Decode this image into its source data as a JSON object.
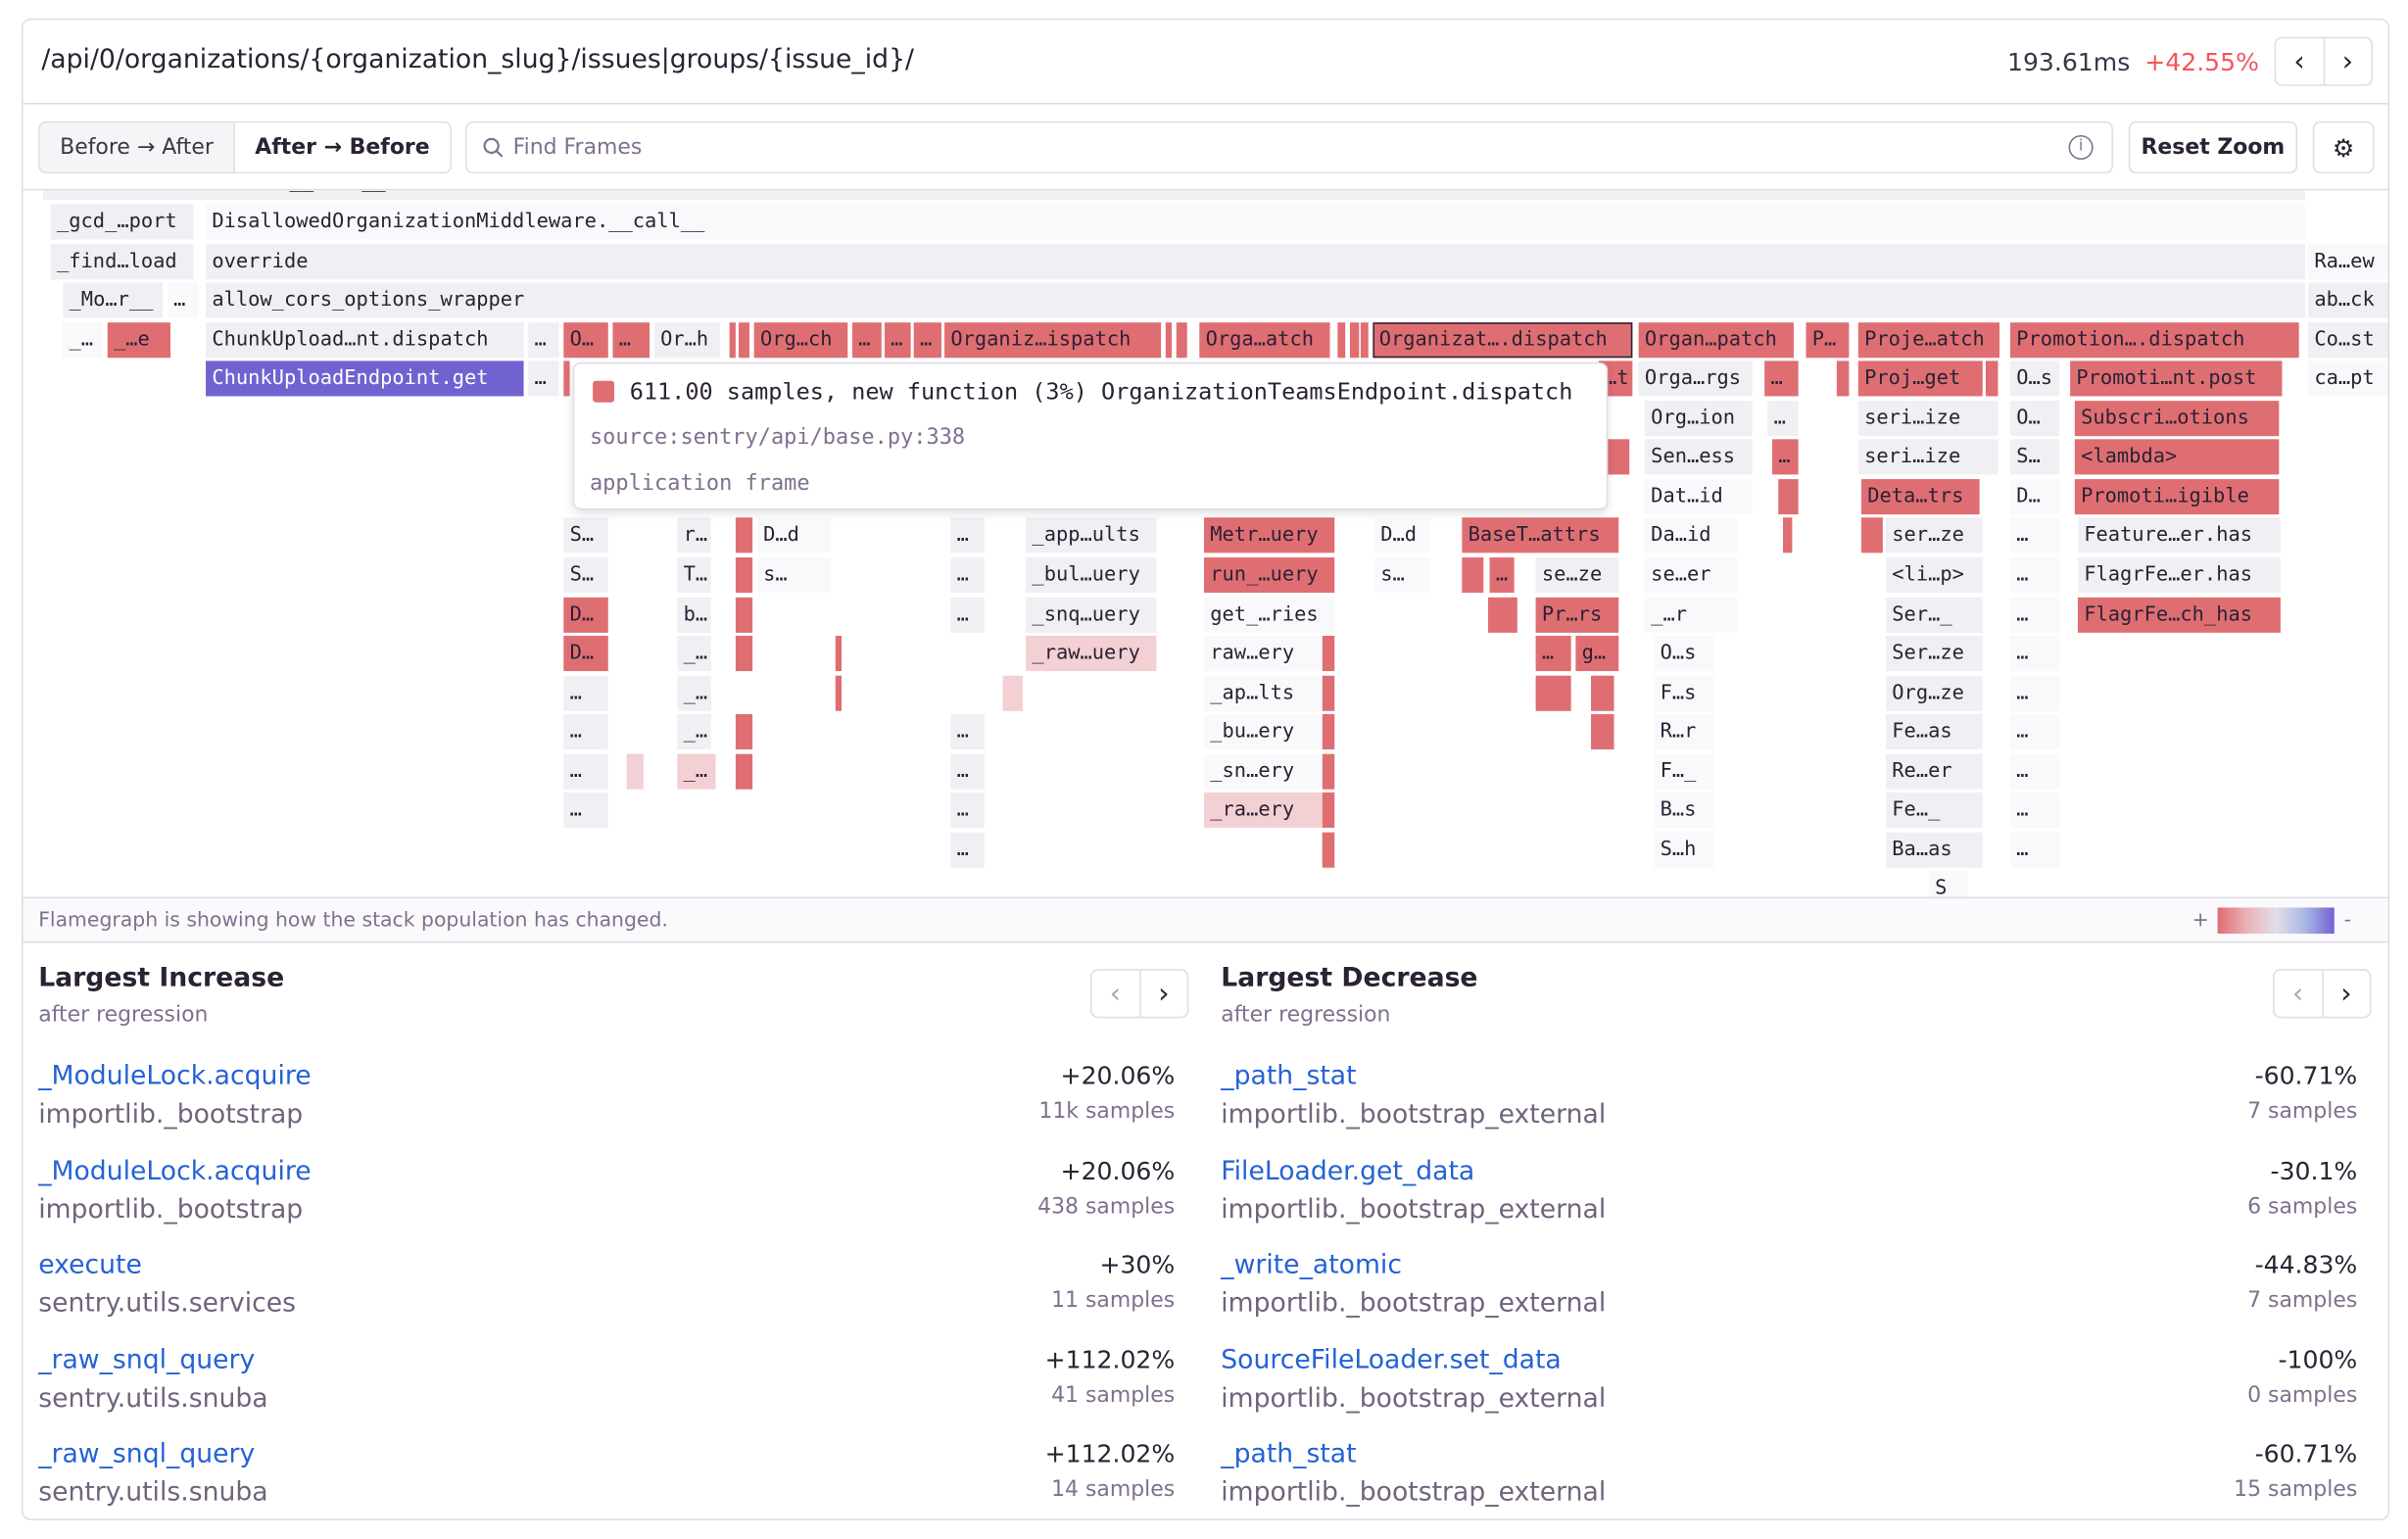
{
  "header": {
    "title": "/api/0/organizations/{organization_slug}/issues|groups/{issue_id}/",
    "duration": "193.61ms",
    "change": "+42.55%",
    "prev": "‹",
    "next": "›"
  },
  "toolbar": {
    "before_after": "Before → After",
    "after_before": "After → Before",
    "search_placeholder": "Find Frames",
    "info": "i",
    "reset_zoom": "Reset Zoom",
    "settings": "⚙"
  },
  "colors": {
    "increase": "#df6e73",
    "slight_increase": "#f3d0d3",
    "decrease": "#7162d1",
    "regression": "#f55459",
    "link": "#2562d4"
  },
  "flamegraph": {
    "frames": [
      {
        "label": "RatelimitMiddleware.__call__",
        "kind": "gray"
      },
      {
        "label": "_gcd_…port",
        "kind": "gray"
      },
      {
        "label": "DisallowedOrganizationMiddleware.__call__",
        "kind": "light"
      },
      {
        "label": "_find…load",
        "kind": "gray"
      },
      {
        "label": "override",
        "kind": "gray"
      },
      {
        "label": "Ra…ew",
        "kind": "light"
      },
      {
        "label": "_Mo…r__",
        "kind": "gray"
      },
      {
        "label": "…",
        "kind": "light"
      },
      {
        "label": "allow_cors_options_wrapper",
        "kind": "gray"
      },
      {
        "label": "ab…ck",
        "kind": "gray"
      },
      {
        "label": "_…",
        "kind": "light"
      },
      {
        "label": "_…e",
        "kind": "red"
      },
      {
        "label": "ChunkUpload…nt.dispatch",
        "kind": "gray"
      },
      {
        "label": "…",
        "kind": "gray"
      },
      {
        "label": "O…",
        "kind": "red"
      },
      {
        "label": "…",
        "kind": "red"
      },
      {
        "label": "Or…h",
        "kind": "gray"
      },
      {
        "label": "Org…ch",
        "kind": "red"
      },
      {
        "label": "…",
        "kind": "red"
      },
      {
        "label": "…",
        "kind": "red"
      },
      {
        "label": "…",
        "kind": "red"
      },
      {
        "label": "Organiz…ispatch",
        "kind": "red"
      },
      {
        "label": "Orga…atch",
        "kind": "red"
      },
      {
        "label": "Organizat….dispatch",
        "kind": "sel"
      },
      {
        "label": "Organ…patch",
        "kind": "red"
      },
      {
        "label": "P…",
        "kind": "red"
      },
      {
        "label": "Proje…atch",
        "kind": "red"
      },
      {
        "label": "Promotion….dispatch",
        "kind": "red"
      },
      {
        "label": "Co…st",
        "kind": "gray"
      },
      {
        "label": "ChunkUploadEndpoint.get",
        "kind": "purple"
      },
      {
        "label": "…",
        "kind": "gray"
      },
      {
        "label": "…t",
        "kind": "red"
      },
      {
        "label": "Orga…rgs",
        "kind": "gray"
      },
      {
        "label": "…",
        "kind": "red"
      },
      {
        "label": "Proj…get",
        "kind": "red"
      },
      {
        "label": "O…s",
        "kind": "gray"
      },
      {
        "label": "Promoti…nt.post",
        "kind": "red"
      },
      {
        "label": "ca…pt",
        "kind": "light"
      },
      {
        "label": "Org…ion",
        "kind": "gray"
      },
      {
        "label": "…",
        "kind": "gray"
      },
      {
        "label": "seri…ize",
        "kind": "gray"
      },
      {
        "label": "O…",
        "kind": "gray"
      },
      {
        "label": "Subscri…otions",
        "kind": "red"
      },
      {
        "label": "Sen…ess",
        "kind": "gray"
      },
      {
        "label": "…",
        "kind": "red"
      },
      {
        "label": "seri…ize",
        "kind": "gray"
      },
      {
        "label": "S…",
        "kind": "gray"
      },
      {
        "label": "<lambda>",
        "kind": "red"
      },
      {
        "label": "Dat…id",
        "kind": "light"
      },
      {
        "label": "Deta…trs",
        "kind": "red"
      },
      {
        "label": "D…",
        "kind": "light"
      },
      {
        "label": "Promoti…igible",
        "kind": "red"
      },
      {
        "label": "S…",
        "kind": "gray"
      },
      {
        "label": "r…",
        "kind": "gray"
      },
      {
        "label": "D…d",
        "kind": "light"
      },
      {
        "label": "…",
        "kind": "gray"
      },
      {
        "label": "_app…ults",
        "kind": "gray"
      },
      {
        "label": "Metr…uery",
        "kind": "red"
      },
      {
        "label": "D…d",
        "kind": "light"
      },
      {
        "label": "BaseT…attrs",
        "kind": "red"
      },
      {
        "label": "Da…id",
        "kind": "light"
      },
      {
        "label": "ser…ze",
        "kind": "gray"
      },
      {
        "label": "…",
        "kind": "light"
      },
      {
        "label": "Feature…er.has",
        "kind": "gray"
      },
      {
        "label": "S…",
        "kind": "gray"
      },
      {
        "label": "T…",
        "kind": "gray"
      },
      {
        "label": "s…",
        "kind": "light"
      },
      {
        "label": "…",
        "kind": "gray"
      },
      {
        "label": "_bul…uery",
        "kind": "gray"
      },
      {
        "label": "run_…uery",
        "kind": "red"
      },
      {
        "label": "s…",
        "kind": "light"
      },
      {
        "label": "…",
        "kind": "red"
      },
      {
        "label": "se…ze",
        "kind": "gray"
      },
      {
        "label": "se…er",
        "kind": "light"
      },
      {
        "label": "<li…p>",
        "kind": "gray"
      },
      {
        "label": "…",
        "kind": "light"
      },
      {
        "label": "FlagrFe…er.has",
        "kind": "gray"
      },
      {
        "label": "D…",
        "kind": "red"
      },
      {
        "label": "b…",
        "kind": "gray"
      },
      {
        "label": "…",
        "kind": "gray"
      },
      {
        "label": "_snq…uery",
        "kind": "gray"
      },
      {
        "label": "get_…ries",
        "kind": "light"
      },
      {
        "label": "Pr…rs",
        "kind": "red"
      },
      {
        "label": "_…r",
        "kind": "light"
      },
      {
        "label": "Ser…_",
        "kind": "gray"
      },
      {
        "label": "…",
        "kind": "light"
      },
      {
        "label": "FlagrFe…ch_has",
        "kind": "red"
      },
      {
        "label": "D…",
        "kind": "red"
      },
      {
        "label": "_…",
        "kind": "gray"
      },
      {
        "label": "_raw…uery",
        "kind": "pink"
      },
      {
        "label": "raw…ery",
        "kind": "light"
      },
      {
        "label": "…",
        "kind": "red"
      },
      {
        "label": "g…",
        "kind": "red"
      },
      {
        "label": "O…s",
        "kind": "light"
      },
      {
        "label": "Ser…ze",
        "kind": "gray"
      },
      {
        "label": "…",
        "kind": "light"
      },
      {
        "label": "…",
        "kind": "gray"
      },
      {
        "label": "_…",
        "kind": "gray"
      },
      {
        "label": "_ap…lts",
        "kind": "light"
      },
      {
        "label": "F…s",
        "kind": "light"
      },
      {
        "label": "Org…ze",
        "kind": "gray"
      },
      {
        "label": "…",
        "kind": "light"
      },
      {
        "label": "…",
        "kind": "gray"
      },
      {
        "label": "_…",
        "kind": "gray"
      },
      {
        "label": "…",
        "kind": "gray"
      },
      {
        "label": "_bu…ery",
        "kind": "light"
      },
      {
        "label": "R…r",
        "kind": "light"
      },
      {
        "label": "Fe…as",
        "kind": "gray"
      },
      {
        "label": "…",
        "kind": "light"
      },
      {
        "label": "…",
        "kind": "gray"
      },
      {
        "label": "_…",
        "kind": "pink"
      },
      {
        "label": "…",
        "kind": "gray"
      },
      {
        "label": "_sn…ery",
        "kind": "light"
      },
      {
        "label": "F…_",
        "kind": "light"
      },
      {
        "label": "Re…er",
        "kind": "gray"
      },
      {
        "label": "…",
        "kind": "light"
      },
      {
        "label": "…",
        "kind": "gray"
      },
      {
        "label": "…",
        "kind": "gray"
      },
      {
        "label": "_ra…ery",
        "kind": "pink"
      },
      {
        "label": "B…s",
        "kind": "light"
      },
      {
        "label": "Fe…_",
        "kind": "gray"
      },
      {
        "label": "…",
        "kind": "light"
      },
      {
        "label": "…",
        "kind": "gray"
      },
      {
        "label": "S…h",
        "kind": "light"
      },
      {
        "label": "Ba…as",
        "kind": "gray"
      },
      {
        "label": "…",
        "kind": "light"
      },
      {
        "label": "S",
        "kind": "light"
      }
    ],
    "tooltip": {
      "line1": "611.00 samples, new function (3%) OrganizationTeamsEndpoint.dispatch",
      "line2": "source:sentry/api/base.py:338",
      "line3": "application frame"
    },
    "footer": "Flamegraph is showing how the stack population has changed.",
    "legend_plus": "+",
    "legend_minus": "-"
  },
  "increase": {
    "title": "Largest Increase",
    "subtitle": "after regression",
    "items": [
      {
        "function": "_ModuleLock.acquire",
        "package": "importlib._bootstrap",
        "change": "+20.06%",
        "samples": "11k samples"
      },
      {
        "function": "_ModuleLock.acquire",
        "package": "importlib._bootstrap",
        "change": "+20.06%",
        "samples": "438 samples"
      },
      {
        "function": "execute",
        "package": "sentry.utils.services",
        "change": "+30%",
        "samples": "11 samples"
      },
      {
        "function": "_raw_snql_query",
        "package": "sentry.utils.snuba",
        "change": "+112.02%",
        "samples": "41 samples"
      },
      {
        "function": "_raw_snql_query",
        "package": "sentry.utils.snuba",
        "change": "+112.02%",
        "samples": "14 samples"
      }
    ]
  },
  "decrease": {
    "title": "Largest Decrease",
    "subtitle": "after regression",
    "items": [
      {
        "function": "_path_stat",
        "package": "importlib._bootstrap_external",
        "change": "-60.71%",
        "samples": "7 samples"
      },
      {
        "function": "FileLoader.get_data",
        "package": "importlib._bootstrap_external",
        "change": "-30.1%",
        "samples": "6 samples"
      },
      {
        "function": "_write_atomic",
        "package": "importlib._bootstrap_external",
        "change": "-44.83%",
        "samples": "7 samples"
      },
      {
        "function": "SourceFileLoader.set_data",
        "package": "importlib._bootstrap_external",
        "change": "-100%",
        "samples": "0 samples"
      },
      {
        "function": "_path_stat",
        "package": "importlib._bootstrap_external",
        "change": "-60.71%",
        "samples": "15 samples"
      }
    ]
  }
}
